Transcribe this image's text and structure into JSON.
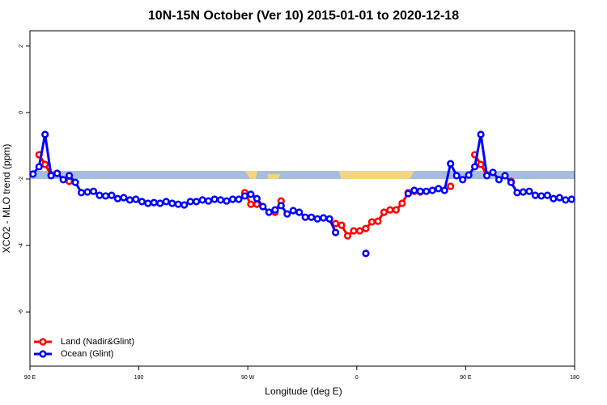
{
  "chart_data": {
    "type": "line",
    "title": "10N-15N October (Ver 10)   2015-01-01 to 2020-12-18",
    "xlabel": "Longitude (deg E)",
    "ylabel": "XCO2 - MLO trend (ppm)",
    "xlim": [
      90,
      540
    ],
    "ylim": [
      -7.63,
      2.46
    ],
    "xticks": [
      {
        "value": 90,
        "label": "90 E"
      },
      180,
      {
        "value": 270,
        "label": "90 W"
      },
      {
        "value": 360,
        "label": "0"
      },
      {
        "value": 450,
        "label": "90 E"
      },
      {
        "value": 540,
        "label": "180"
      }
    ],
    "yticks": [
      -6,
      -4,
      -2,
      0,
      2
    ],
    "legend": "bottom-left",
    "x": [
      92.5,
      97.5,
      102.5,
      107.5,
      112.5,
      117.5,
      122.5,
      127.5,
      132.5,
      137.5,
      142.5,
      147.5,
      152.5,
      157.5,
      162.5,
      167.5,
      172.5,
      177.5,
      182.5,
      187.5,
      192.5,
      197.5,
      202.5,
      207.5,
      212.5,
      217.5,
      222.5,
      227.5,
      232.5,
      237.5,
      242.5,
      247.5,
      252.5,
      257.5,
      262.5,
      267.5,
      272.5,
      277.5,
      282.5,
      287.5,
      292.5,
      297.5,
      302.5,
      307.5,
      312.5,
      317.5,
      322.5,
      327.5,
      332.5,
      337.5,
      342.5,
      347.5,
      352.5,
      357.5,
      362.5,
      367.5,
      372.5,
      377.5,
      382.5,
      387.5,
      392.5,
      397.5,
      402.5,
      407.5,
      412.5,
      417.5,
      422.5,
      427.5,
      432.5,
      437.5,
      442.5,
      447.5,
      452.5,
      457.5,
      462.5,
      467.5,
      472.5,
      477.5,
      482.5,
      487.5,
      492.5,
      497.5,
      502.5,
      507.5,
      512.5,
      517.5,
      522.5,
      527.5,
      532.5,
      537.5
    ],
    "series": [
      {
        "name": "Land (Nadir&Glint)",
        "color": "#ff0000",
        "values": [
          null,
          -1.27,
          -1.56,
          -1.88,
          null,
          null,
          -2.07,
          null,
          null,
          null,
          null,
          null,
          null,
          null,
          null,
          null,
          null,
          null,
          null,
          null,
          null,
          null,
          null,
          null,
          null,
          null,
          null,
          null,
          null,
          null,
          null,
          null,
          null,
          null,
          null,
          -2.41,
          -2.76,
          -2.76,
          null,
          null,
          -3.0,
          -2.66,
          null,
          null,
          null,
          null,
          null,
          null,
          null,
          null,
          -3.34,
          -3.39,
          -3.71,
          -3.56,
          -3.56,
          -3.49,
          -3.29,
          -3.27,
          -3.0,
          -2.93,
          -2.93,
          -2.73,
          -2.41,
          -2.37,
          -2.39,
          null,
          null,
          null,
          null,
          -2.22,
          null,
          null,
          null,
          -1.27,
          -1.56,
          -1.88,
          null,
          null,
          null,
          -2.07,
          null,
          null,
          null,
          null,
          null,
          null,
          null,
          null,
          null,
          null
        ]
      },
      {
        "name": "Ocean (Glint)",
        "color": "#0000ff",
        "values": [
          -1.85,
          -1.63,
          -0.66,
          -1.9,
          -1.83,
          -2.02,
          -1.9,
          -2.1,
          -2.41,
          -2.39,
          -2.37,
          -2.49,
          -2.51,
          -2.49,
          -2.59,
          -2.56,
          -2.63,
          -2.61,
          -2.68,
          -2.73,
          -2.71,
          -2.73,
          -2.68,
          -2.73,
          -2.76,
          -2.78,
          -2.68,
          -2.68,
          -2.63,
          -2.66,
          -2.61,
          -2.63,
          -2.66,
          -2.61,
          -2.61,
          -2.51,
          -2.46,
          -2.59,
          -2.83,
          -3.0,
          -2.93,
          -2.8,
          -3.05,
          -2.95,
          -3.0,
          -3.15,
          -3.15,
          -3.2,
          -3.17,
          -3.2,
          -3.61,
          null,
          null,
          null,
          null,
          -4.24,
          null,
          null,
          null,
          null,
          null,
          null,
          -2.44,
          -2.34,
          -2.37,
          -2.37,
          -2.34,
          -2.29,
          -2.34,
          -1.54,
          -1.9,
          -2.02,
          -1.88,
          -1.63,
          -0.66,
          -1.9,
          -1.8,
          -2.02,
          -1.9,
          -2.1,
          -2.41,
          -2.39,
          -2.37,
          -2.49,
          -2.51,
          -2.49,
          -2.59,
          -2.56,
          -2.63,
          -2.61
        ]
      }
    ]
  }
}
